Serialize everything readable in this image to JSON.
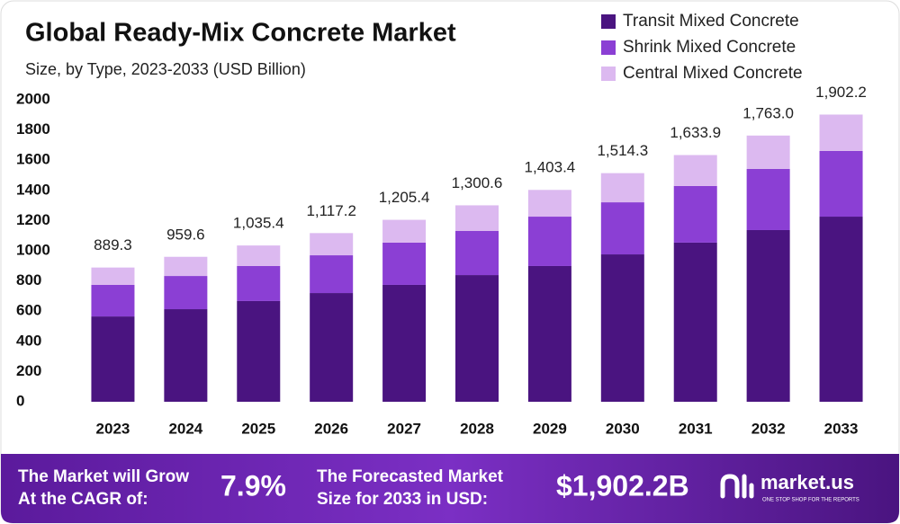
{
  "chart_data": {
    "type": "stacked_bar",
    "title": "Global Ready-Mix Concrete Market",
    "subtitle": "Size, by Type, 2023-2033 (USD Billion)",
    "categories": [
      "2023",
      "2024",
      "2025",
      "2026",
      "2027",
      "2028",
      "2029",
      "2030",
      "2031",
      "2032",
      "2033"
    ],
    "series": [
      {
        "name": "Transit Mixed Concrete",
        "color": "#4a1480",
        "values": [
          565,
          613,
          667,
          720,
          774,
          839,
          899,
          976,
          1054,
          1137,
          1226
        ]
      },
      {
        "name": "Shrink Mixed Concrete",
        "color": "#8b3fd4",
        "values": [
          209,
          220,
          232,
          250,
          280,
          292,
          327,
          345,
          375,
          405,
          435
        ]
      },
      {
        "name": "Central Mixed Concrete",
        "color": "#dcb9f0",
        "values": [
          115,
          127,
          136,
          147,
          151,
          170,
          177,
          193,
          205,
          221,
          241
        ]
      }
    ],
    "totals": {
      "values": [
        889.3,
        959.6,
        1035.4,
        1117.2,
        1205.4,
        1300.6,
        1403.4,
        1514.3,
        1633.9,
        1763.0,
        1902.2
      ],
      "value_labels": [
        "889.3",
        "959.6",
        "1,035.4",
        "1,117.2",
        "1,205.4",
        "1,300.6",
        "1,403.4",
        "1,514.3",
        "1,633.9",
        "1,763.0",
        "1,902.2"
      ]
    },
    "ylim": [
      0,
      2000
    ],
    "yticks": [
      0,
      200,
      400,
      600,
      800,
      1000,
      1200,
      1400,
      1600,
      1800,
      2000
    ],
    "grid": false,
    "legend": "top-right"
  },
  "footer": {
    "cagr_text": [
      "The Market will Grow",
      "At the CAGR of:"
    ],
    "cagr_value": "7.9%",
    "forecast_text": [
      "The Forecasted Market",
      "Size for 2033 in USD:"
    ],
    "forecast_value": "$1,902.2B",
    "brand": "market.us",
    "tagline": "ONE STOP SHOP FOR THE REPORTS"
  }
}
